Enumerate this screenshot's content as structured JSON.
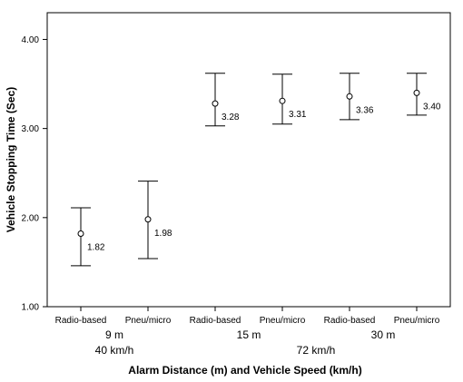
{
  "chart_data": {
    "type": "errorbar",
    "xlabel": "Alarm Distance (m) and Vehicle Speed (km/h)",
    "ylabel": "Vehicle Stopping Time (Sec)",
    "ylim": [
      1.0,
      4.3
    ],
    "yticks": [
      "1.00",
      "2.00",
      "3.00",
      "4.00"
    ],
    "grid": false,
    "categories": [
      "Radio-based",
      "Pneu/micro",
      "Radio-based",
      "Pneu/micro",
      "Radio-based",
      "Pneu/micro"
    ],
    "means": [
      1.82,
      1.98,
      3.28,
      3.31,
      3.36,
      3.4
    ],
    "mean_labels": [
      "1.82",
      "1.98",
      "3.28",
      "3.31",
      "3.36",
      "3.40"
    ],
    "lower": [
      1.46,
      1.54,
      3.03,
      3.05,
      3.1,
      3.15
    ],
    "upper": [
      2.11,
      2.41,
      3.62,
      3.61,
      3.62,
      3.62
    ],
    "distance_groups": [
      {
        "label": "9 m",
        "span": [
          0,
          1
        ]
      },
      {
        "label": "15 m",
        "span": [
          2,
          3
        ]
      },
      {
        "label": "30 m",
        "span": [
          4,
          5
        ]
      }
    ],
    "speed_groups": [
      {
        "label": "40 km/h",
        "span": [
          0,
          1
        ]
      },
      {
        "label": "72 km/h",
        "span": [
          2,
          5
        ]
      }
    ],
    "colors": {
      "line": "#000000",
      "marker_fill": "#ffffff"
    }
  }
}
